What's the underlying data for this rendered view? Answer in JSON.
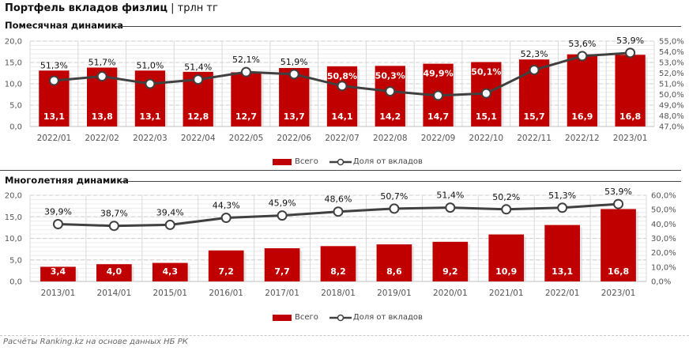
{
  "header": {
    "title_bold": "Портфель вкладов физлиц",
    "title_rest": " | трлн тг"
  },
  "colors": {
    "bar": "#c00000",
    "line": "#404040",
    "marker_fill": "#ffffff"
  },
  "footer": "Расчёты Ranking.kz на основе данных НБ РК",
  "chart_data": [
    {
      "type": "bar",
      "title": "Помесячная динамика",
      "categories": [
        "2022/01",
        "2022/02",
        "2022/03",
        "2022/04",
        "2022/05",
        "2022/06",
        "2022/07",
        "2022/08",
        "2022/09",
        "2022/10",
        "2022/11",
        "2022/12",
        "2023/01"
      ],
      "series": [
        {
          "name": "Всего",
          "type": "bar",
          "axis": "left",
          "values": [
            13.1,
            13.8,
            13.1,
            12.8,
            12.7,
            13.7,
            14.1,
            14.2,
            14.7,
            15.1,
            15.7,
            16.9,
            16.8
          ],
          "labels": [
            "13,1",
            "13,8",
            "13,1",
            "12,8",
            "12,7",
            "13,7",
            "14,1",
            "14,2",
            "14,7",
            "15,1",
            "15,7",
            "16,9",
            "16,8"
          ]
        },
        {
          "name": "Доля от вкладов",
          "type": "line",
          "axis": "right",
          "values": [
            51.3,
            51.7,
            51.0,
            51.4,
            52.1,
            51.9,
            50.8,
            50.3,
            49.9,
            50.1,
            52.3,
            53.6,
            53.9
          ],
          "labels": [
            "51,3%",
            "51,7%",
            "51,0%",
            "51,4%",
            "52,1%",
            "51,9%",
            "50,8%",
            "50,3%",
            "49,9%",
            "50,1%",
            "52,3%",
            "53,6%",
            "53,9%"
          ]
        }
      ],
      "y_left": {
        "range": [
          0,
          20
        ],
        "ticks": [
          "0,0",
          "5,0",
          "10,0",
          "15,0",
          "20,0"
        ]
      },
      "y_right": {
        "range": [
          47,
          55
        ],
        "ticks": [
          "47,0%",
          "48,0%",
          "49,0%",
          "50,0%",
          "51,0%",
          "52,0%",
          "53,0%",
          "54,0%",
          "55,0%"
        ]
      },
      "legend": {
        "position": "bottom",
        "items": [
          "Всего",
          "Доля от вкладов"
        ]
      },
      "grid": true
    },
    {
      "type": "bar",
      "title": "Многолетняя динамика",
      "categories": [
        "2013/01",
        "2014/01",
        "2015/01",
        "2016/01",
        "2017/01",
        "2018/01",
        "2019/01",
        "2020/01",
        "2021/01",
        "2022/01",
        "2023/01"
      ],
      "series": [
        {
          "name": "Всего",
          "type": "bar",
          "axis": "left",
          "values": [
            3.4,
            4.0,
            4.3,
            7.2,
            7.7,
            8.2,
            8.6,
            9.2,
            10.9,
            13.1,
            16.8
          ],
          "labels": [
            "3,4",
            "4,0",
            "4,3",
            "7,2",
            "7,7",
            "8,2",
            "8,6",
            "9,2",
            "10,9",
            "13,1",
            "16,8"
          ]
        },
        {
          "name": "Доля от вкладов",
          "type": "line",
          "axis": "right",
          "values": [
            39.9,
            38.7,
            39.4,
            44.3,
            45.9,
            48.6,
            50.7,
            51.4,
            50.2,
            51.3,
            53.9
          ],
          "labels": [
            "39,9%",
            "38,7%",
            "39,4%",
            "44,3%",
            "45,9%",
            "48,6%",
            "50,7%",
            "51,4%",
            "50,2%",
            "51,3%",
            "53,9%"
          ]
        }
      ],
      "y_left": {
        "range": [
          0,
          20
        ],
        "ticks": [
          "0,0",
          "5,0",
          "10,0",
          "15,0",
          "20,0"
        ]
      },
      "y_right": {
        "range": [
          0,
          60
        ],
        "ticks": [
          "0,0%",
          "10,0%",
          "20,0%",
          "30,0%",
          "40,0%",
          "50,0%",
          "60,0%"
        ]
      },
      "legend": {
        "position": "bottom",
        "items": [
          "Всего",
          "Доля от вкладов"
        ]
      },
      "grid": true
    }
  ]
}
